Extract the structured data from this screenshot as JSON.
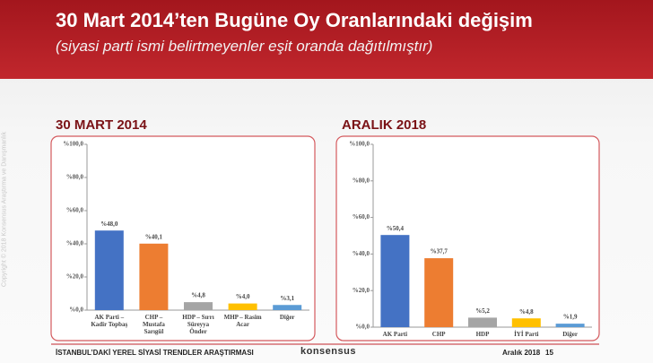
{
  "header": {
    "title": "30 Mart 2014’ten Bugüne Oy Oranlarındaki değişim",
    "subtitle": "(siyasi parti ismi belirtmeyenler eşit oranda dağıtılmıştır)"
  },
  "side_note": "Copyright © 2018 Konsensus Araştırma ve Danışmanlık",
  "footer": {
    "left": "İSTANBUL’DAKİ YEREL SİYASİ TRENDLER ARAŞTIRMASI",
    "logo": "konsensus",
    "date": "Aralık 2018",
    "page": "15"
  },
  "chart_data": [
    {
      "type": "bar",
      "title": "30 MART 2014",
      "categories": [
        "AK Parti – Kadir Topbaş",
        "CHP – Mustafa Sarıgül",
        "HDP – Sırrı Süreyya Önder",
        "MHP – Rasim Acar",
        "Diğer"
      ],
      "values": [
        48.0,
        40.1,
        4.8,
        4.0,
        3.1
      ],
      "value_labels": [
        "%48,0",
        "%40,1",
        "%4,8",
        "%4,0",
        "%3,1"
      ],
      "colors": [
        "#4472c4",
        "#ed7d31",
        "#a5a5a5",
        "#ffc000",
        "#5b9bd5"
      ],
      "ylim": [
        0,
        100
      ],
      "yticks": [
        {
          "value": 0,
          "label": "%0,0"
        },
        {
          "value": 20,
          "label": "%20,0"
        },
        {
          "value": 40,
          "label": "%40,0"
        },
        {
          "value": 60,
          "label": "%60,0"
        },
        {
          "value": 80,
          "label": "%80,0"
        },
        {
          "value": 100,
          "label": "%100,0"
        }
      ]
    },
    {
      "type": "bar",
      "title": "ARALIK 2018",
      "categories": [
        "AK Parti",
        "CHP",
        "HDP",
        "İYİ Parti",
        "Diğer"
      ],
      "values": [
        50.4,
        37.7,
        5.2,
        4.8,
        1.9
      ],
      "value_labels": [
        "%50,4",
        "%37,7",
        "%5,2",
        "%4,8",
        "%1,9"
      ],
      "colors": [
        "#4472c4",
        "#ed7d31",
        "#a5a5a5",
        "#ffc000",
        "#5b9bd5"
      ],
      "ylim": [
        0,
        100
      ],
      "yticks": [
        {
          "value": 0,
          "label": "%0,0"
        },
        {
          "value": 20,
          "label": "%20,0"
        },
        {
          "value": 40,
          "label": "%40,0"
        },
        {
          "value": 60,
          "label": "%60,0"
        },
        {
          "value": 80,
          "label": "%80,0"
        },
        {
          "value": 100,
          "label": "%100,0"
        }
      ]
    }
  ]
}
